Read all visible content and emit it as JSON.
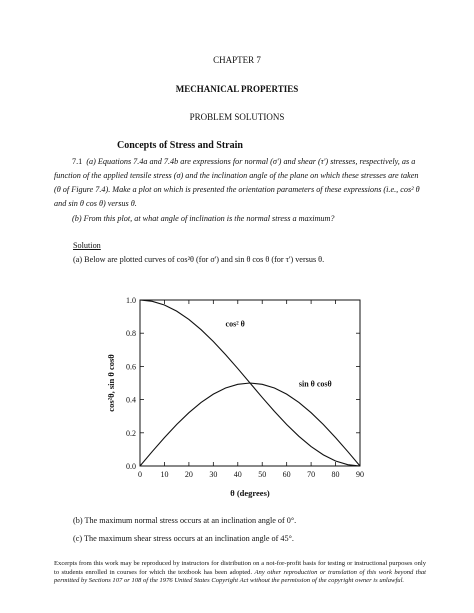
{
  "header": {
    "chapter": "CHAPTER 7",
    "title": "MECHANICAL PROPERTIES",
    "subtitle": "PROBLEM SOLUTIONS"
  },
  "section": "Concepts of Stress and Strain",
  "problem": {
    "number": "7.1",
    "part_a": "(a) Equations 7.4a and 7.4b are expressions for normal (σ') and shear (τ') stresses, respectively, as a function of the applied tensile stress (σ) and the inclination angle of the plane on which these stresses are taken (θ of Figure 7.4). Make a plot on which is presented the orientation parameters of these expressions (i.e., cos² θ and sin θ cos θ) versus θ.",
    "part_b": "(b) From this plot, at what angle of inclination is the normal stress a maximum?"
  },
  "solution": {
    "heading": "Solution",
    "intro": "(a) Below are plotted curves of cos²θ (for σ') and sin θ cos θ (for τ') versus θ.",
    "answer_b": "(b) The maximum normal stress occurs at an inclination angle of 0°.",
    "answer_c": "(c) The maximum shear stress occurs at an inclination angle of 45°."
  },
  "footer": {
    "plain": "Excerpts from this work may be reproduced by instructors for distribution on a not-for-profit basis for testing or instructional purposes only to students enrolled in courses for which the textbook has been adopted.",
    "italic": "Any other reproduction or translation of this work beyond that permitted by Sections 107 or 108 of the 1976 United States Copyright Act without the permission of the copyright owner is unlawful."
  },
  "chart_data": {
    "type": "line",
    "xlabel": "θ (degrees)",
    "ylabel": "cos²θ, sin θ cosθ",
    "xlim": [
      0,
      90
    ],
    "ylim": [
      0,
      1.0
    ],
    "x_ticks": [
      0,
      10,
      20,
      30,
      40,
      50,
      60,
      70,
      80,
      90
    ],
    "y_ticks": [
      0.0,
      0.2,
      0.4,
      0.6,
      0.8,
      1.0
    ],
    "y_tick_labels": [
      "0.0",
      "0.2",
      "0.4",
      "0.6",
      "0.8",
      "1.0"
    ],
    "grid": false,
    "x": [
      0,
      5,
      10,
      15,
      20,
      25,
      30,
      35,
      40,
      45,
      50,
      55,
      60,
      65,
      70,
      75,
      80,
      85,
      90
    ],
    "series": [
      {
        "name": "cos² θ",
        "values": [
          1.0,
          0.992,
          0.97,
          0.933,
          0.883,
          0.821,
          0.75,
          0.671,
          0.587,
          0.5,
          0.413,
          0.329,
          0.25,
          0.179,
          0.117,
          0.067,
          0.03,
          0.008,
          0.0
        ]
      },
      {
        "name": "sin θ cosθ",
        "values": [
          0.0,
          0.087,
          0.171,
          0.25,
          0.321,
          0.383,
          0.433,
          0.47,
          0.492,
          0.5,
          0.492,
          0.47,
          0.433,
          0.383,
          0.321,
          0.25,
          0.171,
          0.087,
          0.0
        ]
      }
    ],
    "annotations": [
      {
        "text": "cos² θ",
        "x": 35,
        "y": 0.84
      },
      {
        "text": "sin θ cosθ",
        "x": 65,
        "y": 0.48
      }
    ]
  }
}
